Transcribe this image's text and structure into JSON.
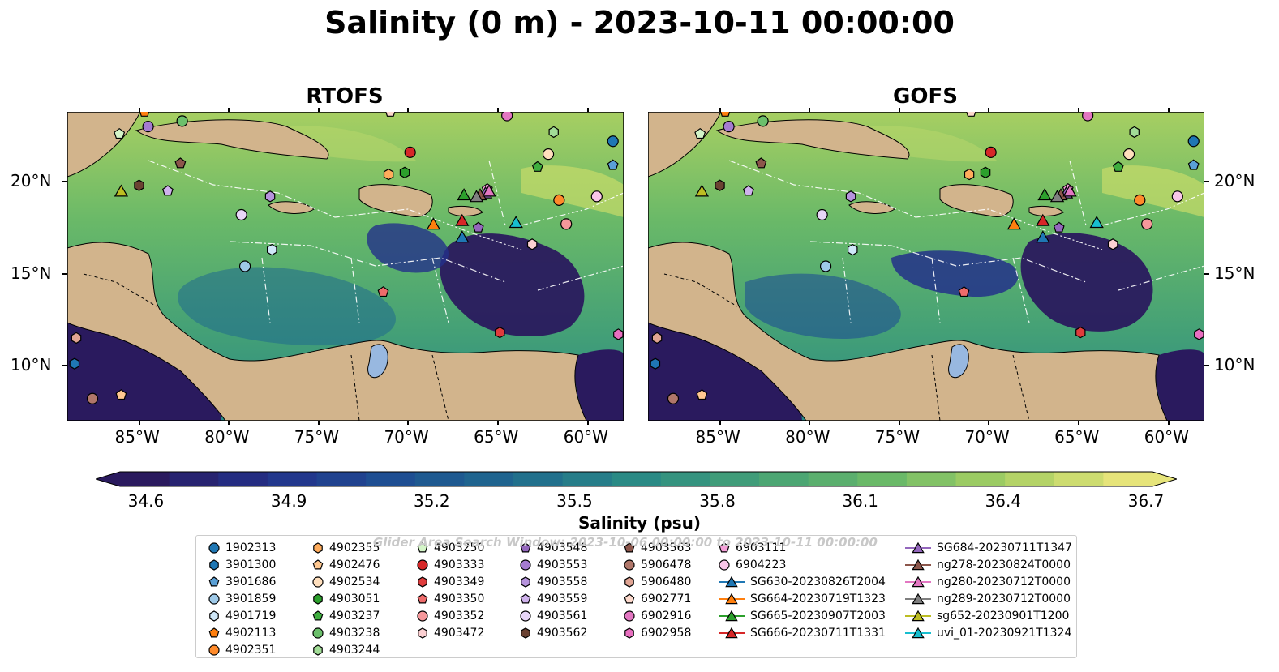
{
  "title": "Salinity (0 m) - 2023-10-11 00:00:00",
  "panels": [
    {
      "title": "RTOFS"
    },
    {
      "title": "GOFS"
    }
  ],
  "axes": {
    "x_ticks": [
      "85°W",
      "80°W",
      "75°W",
      "70°W",
      "65°W",
      "60°W"
    ],
    "y_ticks": [
      "20°N",
      "15°N",
      "10°N"
    ]
  },
  "colorbar": {
    "label": "Salinity (psu)",
    "ticks": [
      "34.6",
      "34.9",
      "35.2",
      "35.5",
      "35.8",
      "36.1",
      "36.4",
      "36.7"
    ],
    "colormap": [
      "#2a1a5e",
      "#23318a",
      "#1e4e92",
      "#1f6a8e",
      "#2a8a85",
      "#45a176",
      "#6ab968",
      "#a7cf62",
      "#e6e47a"
    ]
  },
  "watermark": "Glider Area Search Window: 2023-10-06 00:00:00 to 2023-10-11 00:00:00",
  "legend": {
    "columns": [
      [
        {
          "label": "1902313",
          "marker": "circle",
          "color": "#1f77b4"
        },
        {
          "label": "3901300",
          "marker": "hexagon",
          "color": "#1f77b4"
        },
        {
          "label": "3901686",
          "marker": "pentagon",
          "color": "#5aa0d6"
        },
        {
          "label": "3901859",
          "marker": "circle",
          "color": "#9ec9e8"
        },
        {
          "label": "4901719",
          "marker": "hexagon",
          "color": "#cfe7f8"
        },
        {
          "label": "4902113",
          "marker": "pentagon",
          "color": "#ff7f0e"
        },
        {
          "label": "4902351",
          "marker": "circle",
          "color": "#ff8a2a"
        }
      ],
      [
        {
          "label": "4902355",
          "marker": "hexagon",
          "color": "#ffac5c"
        },
        {
          "label": "4902476",
          "marker": "pentagon",
          "color": "#ffc891"
        },
        {
          "label": "4902534",
          "marker": "circle",
          "color": "#ffdfbd"
        },
        {
          "label": "4903051",
          "marker": "hexagon",
          "color": "#2ca02c"
        },
        {
          "label": "4903237",
          "marker": "pentagon",
          "color": "#3fae3f"
        },
        {
          "label": "4903238",
          "marker": "circle",
          "color": "#6cc06c"
        },
        {
          "label": "4903244",
          "marker": "hexagon",
          "color": "#a2dd97"
        }
      ],
      [
        {
          "label": "4903250",
          "marker": "pentagon",
          "color": "#d4f5c8"
        },
        {
          "label": "4903333",
          "marker": "circle",
          "color": "#d62728"
        },
        {
          "label": "4903349",
          "marker": "hexagon",
          "color": "#e03c3c"
        },
        {
          "label": "4903350",
          "marker": "pentagon",
          "color": "#ee6b6b"
        },
        {
          "label": "4903352",
          "marker": "circle",
          "color": "#f5989b"
        },
        {
          "label": "4903472",
          "marker": "hexagon",
          "color": "#fcd0d2"
        }
      ],
      [
        {
          "label": "4903548",
          "marker": "pentagon",
          "color": "#9467bd"
        },
        {
          "label": "4903553",
          "marker": "circle",
          "color": "#a57bd0"
        },
        {
          "label": "4903558",
          "marker": "hexagon",
          "color": "#b693dd"
        },
        {
          "label": "4903559",
          "marker": "pentagon",
          "color": "#cfb2ec"
        },
        {
          "label": "4903561",
          "marker": "circle",
          "color": "#e8d6f8"
        },
        {
          "label": "4903562",
          "marker": "hexagon",
          "color": "#6b4232"
        }
      ],
      [
        {
          "label": "4903563",
          "marker": "pentagon",
          "color": "#8c564b"
        },
        {
          "label": "5906478",
          "marker": "circle",
          "color": "#b0776a"
        },
        {
          "label": "5906480",
          "marker": "hexagon",
          "color": "#e0a493"
        },
        {
          "label": "6902771",
          "marker": "pentagon",
          "color": "#fcd9cc"
        },
        {
          "label": "6902916",
          "marker": "circle",
          "color": "#e377c2"
        },
        {
          "label": "6902958",
          "marker": "hexagon",
          "color": "#e86fc0"
        }
      ],
      [
        {
          "label": "6903111",
          "marker": "pentagon",
          "color": "#f49fd8"
        },
        {
          "label": "6904223",
          "marker": "circle",
          "color": "#f9c6e8"
        },
        {
          "label": "SG630-20230826T2004",
          "marker": "triangle-line",
          "color": "#1f77b4"
        },
        {
          "label": "SG664-20230719T1323",
          "marker": "triangle-line",
          "color": "#ff7f0e"
        },
        {
          "label": "SG665-20230907T2003",
          "marker": "triangle-line",
          "color": "#2ca02c"
        },
        {
          "label": "SG666-20230711T1331",
          "marker": "triangle-line",
          "color": "#d62728"
        }
      ],
      [
        {
          "label": "SG684-20230711T1347",
          "marker": "triangle-line",
          "color": "#9467bd"
        },
        {
          "label": "ng278-20230824T0000",
          "marker": "triangle-line",
          "color": "#8c564b"
        },
        {
          "label": "ng280-20230712T0000",
          "marker": "triangle-line",
          "color": "#e377c2"
        },
        {
          "label": "ng289-20230712T0000",
          "marker": "triangle-line",
          "color": "#7f7f7f"
        },
        {
          "label": "sg652-20230901T1200",
          "marker": "triangle-line",
          "color": "#bcbd22"
        },
        {
          "label": "uvi_01-20230921T1324",
          "marker": "triangle-line",
          "color": "#17becf"
        }
      ]
    ]
  },
  "chart_data": {
    "type": "map",
    "variable": "Salinity",
    "depth": "0 m",
    "time": "2023-10-11 00:00:00",
    "units": "psu",
    "color_range": [
      34.6,
      36.7
    ],
    "extent": {
      "lon": [
        -89.0,
        -58.0
      ],
      "lat": [
        7.0,
        23.8
      ]
    },
    "land_color": "#d2b48c",
    "lake_color": "#98b8e0",
    "floats": [
      {
        "id": "1902313",
        "lon": -58.6,
        "lat": 22.2
      },
      {
        "id": "3901300",
        "lon": -88.6,
        "lat": 10.1
      },
      {
        "id": "3901686",
        "lon": -58.6,
        "lat": 20.9
      },
      {
        "id": "3901859",
        "lon": -79.1,
        "lat": 15.4
      },
      {
        "id": "4901719",
        "lon": -77.6,
        "lat": 16.3
      },
      {
        "id": "4902113",
        "lon": -84.7,
        "lat": 23.8
      },
      {
        "id": "4902351",
        "lon": -61.6,
        "lat": 19.0
      },
      {
        "id": "4902355",
        "lon": -71.1,
        "lat": 20.4
      },
      {
        "id": "4902476",
        "lon": -86.0,
        "lat": 8.4
      },
      {
        "id": "4902534",
        "lon": -62.2,
        "lat": 21.5
      },
      {
        "id": "4903051",
        "lon": -70.2,
        "lat": 20.5
      },
      {
        "id": "4903237",
        "lon": -62.8,
        "lat": 20.8
      },
      {
        "id": "4903238",
        "lon": -82.6,
        "lat": 23.3
      },
      {
        "id": "4903244",
        "lon": -61.9,
        "lat": 22.7
      },
      {
        "id": "4903250",
        "lon": -86.1,
        "lat": 22.6
      },
      {
        "id": "4903333",
        "lon": -69.9,
        "lat": 21.6
      },
      {
        "id": "4903349",
        "lon": -64.9,
        "lat": 11.8
      },
      {
        "id": "4903350",
        "lon": -71.4,
        "lat": 14.0
      },
      {
        "id": "4903352",
        "lon": -61.2,
        "lat": 17.7
      },
      {
        "id": "4903472",
        "lon": -63.1,
        "lat": 16.6
      },
      {
        "id": "4903548",
        "lon": -66.1,
        "lat": 17.5
      },
      {
        "id": "4903553",
        "lon": -84.5,
        "lat": 23.0
      },
      {
        "id": "4903558",
        "lon": -77.7,
        "lat": 19.2
      },
      {
        "id": "4903559",
        "lon": -83.4,
        "lat": 19.5
      },
      {
        "id": "4903561",
        "lon": -79.3,
        "lat": 18.2
      },
      {
        "id": "4903562",
        "lon": -85.0,
        "lat": 19.8
      },
      {
        "id": "4903563",
        "lon": -82.7,
        "lat": 21.0
      },
      {
        "id": "5906478",
        "lon": -87.6,
        "lat": 8.2
      },
      {
        "id": "5906480",
        "lon": -88.5,
        "lat": 11.5
      },
      {
        "id": "6902771",
        "lon": -71.0,
        "lat": 23.8
      },
      {
        "id": "6902916",
        "lon": -64.5,
        "lat": 23.6
      },
      {
        "id": "6902958",
        "lon": -58.3,
        "lat": 11.7
      },
      {
        "id": "6903111",
        "lon": -65.6,
        "lat": 19.6
      },
      {
        "id": "6904223",
        "lon": -59.5,
        "lat": 19.2
      }
    ],
    "gliders": [
      {
        "id": "SG630-20230826T2004",
        "lon": -67.0,
        "lat": 17.0
      },
      {
        "id": "SG664-20230719T1323",
        "lon": -68.6,
        "lat": 17.7
      },
      {
        "id": "SG665-20230907T2003",
        "lon": -66.9,
        "lat": 19.3
      },
      {
        "id": "SG666-20230711T1331",
        "lon": -67.0,
        "lat": 17.9
      },
      {
        "id": "SG684-20230711T1347",
        "lon": -65.7,
        "lat": 19.4
      },
      {
        "id": "ng278-20230824T0000",
        "lon": -66.0,
        "lat": 19.3
      },
      {
        "id": "ng280-20230712T0000",
        "lon": -65.5,
        "lat": 19.5
      },
      {
        "id": "ng289-20230712T0000",
        "lon": -66.2,
        "lat": 19.2
      },
      {
        "id": "sg652-20230901T1200",
        "lon": -86.0,
        "lat": 19.5
      },
      {
        "id": "uvi_01-20230921T1324",
        "lon": -64.0,
        "lat": 17.8
      }
    ]
  }
}
